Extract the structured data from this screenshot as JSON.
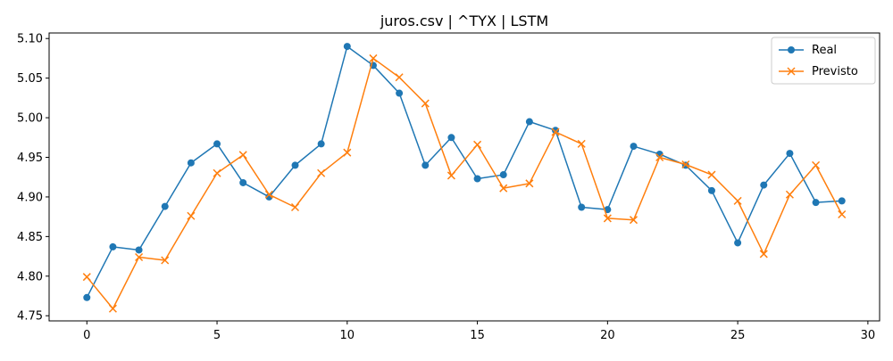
{
  "chart_data": {
    "type": "line",
    "title": "juros.csv | ^TYX | LSTM",
    "xlabel": "",
    "ylabel": "",
    "xlim": [
      -1.45,
      30.45
    ],
    "ylim": [
      4.7435,
      5.107
    ],
    "xticks": [
      0,
      5,
      10,
      15,
      20,
      25,
      30
    ],
    "xtick_labels": [
      "0",
      "5",
      "10",
      "15",
      "20",
      "25",
      "30"
    ],
    "yticks": [
      4.75,
      4.8,
      4.85,
      4.9,
      4.95,
      5.0,
      5.05,
      5.1
    ],
    "ytick_labels": [
      "4.75",
      "4.80",
      "4.85",
      "4.90",
      "4.95",
      "5.00",
      "5.05",
      "5.10"
    ],
    "grid": false,
    "legend_position": "top-right",
    "x": [
      0,
      1,
      2,
      3,
      4,
      5,
      6,
      7,
      8,
      9,
      10,
      11,
      12,
      13,
      14,
      15,
      16,
      17,
      18,
      19,
      20,
      21,
      22,
      23,
      24,
      25,
      26,
      27,
      28,
      29
    ],
    "series": [
      {
        "name": "Real",
        "color": "#1f77b4",
        "marker": "circle",
        "values": [
          4.773,
          4.837,
          4.833,
          4.888,
          4.943,
          4.967,
          4.918,
          4.9,
          4.94,
          4.967,
          5.09,
          5.066,
          5.031,
          4.94,
          4.975,
          4.923,
          4.928,
          4.995,
          4.984,
          4.887,
          4.884,
          4.964,
          4.954,
          4.94,
          4.908,
          4.842,
          4.915,
          4.955,
          4.893,
          4.895
        ]
      },
      {
        "name": "Previsto",
        "color": "#ff7f0e",
        "marker": "x",
        "values": [
          4.799,
          4.759,
          4.824,
          4.82,
          4.876,
          4.93,
          4.953,
          4.903,
          4.887,
          4.93,
          4.956,
          5.075,
          5.051,
          5.018,
          4.927,
          4.966,
          4.911,
          4.917,
          4.982,
          4.967,
          4.873,
          4.871,
          4.95,
          4.941,
          4.928,
          4.895,
          4.828,
          4.903,
          4.94,
          4.878
        ]
      }
    ]
  }
}
